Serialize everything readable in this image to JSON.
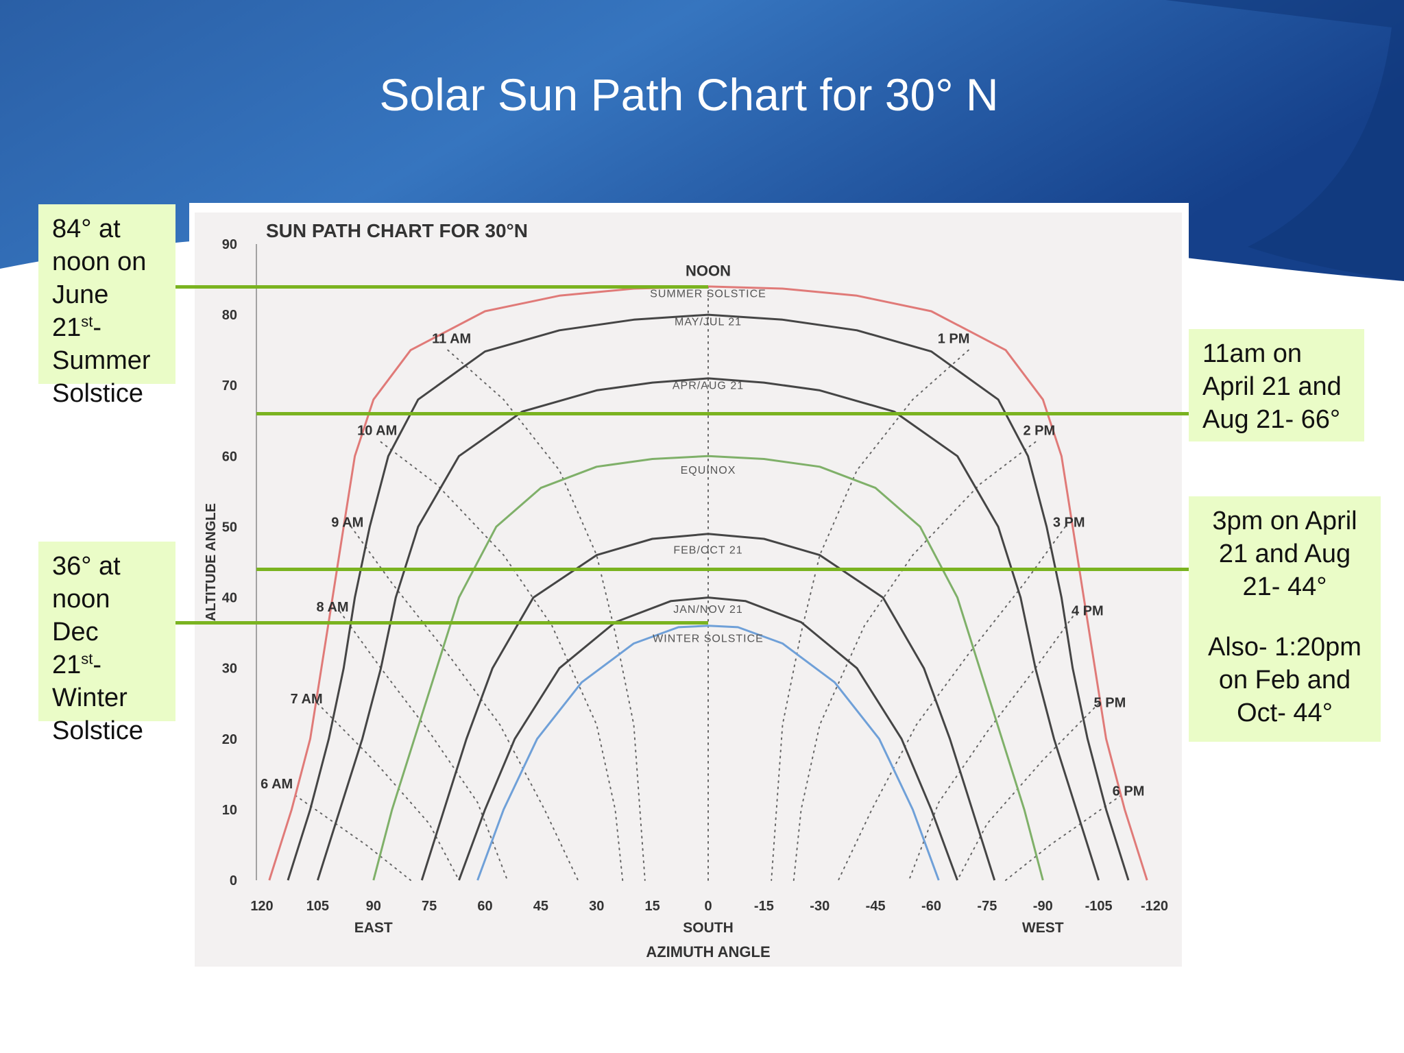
{
  "slide": {
    "title": "Solar Sun Path Chart for 30° N",
    "colors": {
      "header_dark": "#153d82",
      "header_light": "#2f6fb8",
      "highlight_line": "#7ab320",
      "note_bg": "#eafcc7"
    }
  },
  "notes": {
    "summer": {
      "l1": "84° at",
      "l2": "noon on",
      "l3": "June",
      "l4a": "21",
      "l4sup": "st",
      "l4b": "-",
      "l5": "Summer",
      "l6": "Solstice"
    },
    "winter": {
      "l1": "36° at",
      "l2": "noon",
      "l3": "Dec",
      "l4a": "21",
      "l4sup": "st",
      "l4b": "-",
      "l5": "Winter",
      "l6": "Solstice"
    },
    "eleven": {
      "l1": "11am on",
      "l2": "April 21 and",
      "l3": "Aug 21- 66°"
    },
    "three": {
      "l1": "3pm on April",
      "l2": "21 and Aug",
      "l3": "21- 44°",
      "l4": "Also- 1:20pm",
      "l5": "on Feb and",
      "l6": "Oct- 44°"
    }
  },
  "chart_data": {
    "type": "line",
    "title": "SUN PATH CHART FOR 30°N",
    "xlabel": "AZIMUTH ANGLE",
    "ylabel": "ALTITUDE ANGLE",
    "xlim": [
      120,
      -120
    ],
    "ylim": [
      0,
      90
    ],
    "x_ticks": [
      120,
      105,
      90,
      75,
      60,
      45,
      30,
      15,
      0,
      -15,
      -30,
      -45,
      -60,
      -75,
      -90,
      -105,
      -120
    ],
    "y_ticks": [
      0,
      10,
      20,
      30,
      40,
      50,
      60,
      70,
      80,
      90
    ],
    "x_direction_labels": [
      {
        "x": 90,
        "text": "EAST"
      },
      {
        "x": 0,
        "text": "SOUTH"
      },
      {
        "x": -90,
        "text": "WEST"
      }
    ],
    "series": [
      {
        "name": "SUMMER SOLSTICE",
        "color": "#e07a78",
        "label_y": 82.5,
        "points": [
          [
            118,
            0
          ],
          [
            112,
            10
          ],
          [
            107,
            20
          ],
          [
            104,
            30
          ],
          [
            101,
            40
          ],
          [
            98,
            50
          ],
          [
            95,
            60
          ],
          [
            90,
            68
          ],
          [
            80,
            75
          ],
          [
            60,
            80.5
          ],
          [
            40,
            82.7
          ],
          [
            20,
            83.7
          ],
          [
            0,
            84
          ],
          [
            -20,
            83.7
          ],
          [
            -40,
            82.7
          ],
          [
            -60,
            80.5
          ],
          [
            -80,
            75
          ],
          [
            -90,
            68
          ],
          [
            -95,
            60
          ],
          [
            -98,
            50
          ],
          [
            -101,
            40
          ],
          [
            -104,
            30
          ],
          [
            -107,
            20
          ],
          [
            -112,
            10
          ],
          [
            -118,
            0
          ]
        ]
      },
      {
        "name": "MAY/JUL 21",
        "color": "#454545",
        "label_y": 78.5,
        "points": [
          [
            113,
            0
          ],
          [
            107,
            10
          ],
          [
            102,
            20
          ],
          [
            98,
            30
          ],
          [
            95,
            40
          ],
          [
            91,
            50
          ],
          [
            86,
            60
          ],
          [
            78,
            68
          ],
          [
            60,
            74.8
          ],
          [
            40,
            77.8
          ],
          [
            20,
            79.3
          ],
          [
            0,
            80
          ],
          [
            -20,
            79.3
          ],
          [
            -40,
            77.8
          ],
          [
            -60,
            74.8
          ],
          [
            -78,
            68
          ],
          [
            -86,
            60
          ],
          [
            -91,
            50
          ],
          [
            -95,
            40
          ],
          [
            -98,
            30
          ],
          [
            -102,
            20
          ],
          [
            -107,
            10
          ],
          [
            -113,
            0
          ]
        ]
      },
      {
        "name": "APR/AUG 21",
        "color": "#454545",
        "label_y": 69.5,
        "points": [
          [
            105,
            0
          ],
          [
            99,
            10
          ],
          [
            93,
            20
          ],
          [
            88,
            30
          ],
          [
            84,
            40
          ],
          [
            78,
            50
          ],
          [
            67,
            60
          ],
          [
            50,
            66.3
          ],
          [
            30,
            69.3
          ],
          [
            15,
            70.4
          ],
          [
            0,
            71
          ],
          [
            -15,
            70.4
          ],
          [
            -30,
            69.3
          ],
          [
            -50,
            66.3
          ],
          [
            -67,
            60
          ],
          [
            -78,
            50
          ],
          [
            -84,
            40
          ],
          [
            -88,
            30
          ],
          [
            -93,
            20
          ],
          [
            -99,
            10
          ],
          [
            -105,
            0
          ]
        ]
      },
      {
        "name": "EQUINOX",
        "color": "#7fb069",
        "label_y": 57.5,
        "points": [
          [
            90,
            0
          ],
          [
            85,
            10
          ],
          [
            79,
            20
          ],
          [
            73,
            30
          ],
          [
            67,
            40
          ],
          [
            57,
            50
          ],
          [
            45,
            55.5
          ],
          [
            30,
            58.5
          ],
          [
            15,
            59.6
          ],
          [
            0,
            60
          ],
          [
            -15,
            59.6
          ],
          [
            -30,
            58.5
          ],
          [
            -45,
            55.5
          ],
          [
            -57,
            50
          ],
          [
            -67,
            40
          ],
          [
            -73,
            30
          ],
          [
            -79,
            20
          ],
          [
            -85,
            10
          ],
          [
            -90,
            0
          ]
        ]
      },
      {
        "name": "FEB/OCT 21",
        "color": "#454545",
        "label_y": 46.2,
        "points": [
          [
            77,
            0
          ],
          [
            71,
            10
          ],
          [
            65,
            20
          ],
          [
            58,
            30
          ],
          [
            47,
            40
          ],
          [
            30,
            46
          ],
          [
            15,
            48.3
          ],
          [
            0,
            49
          ],
          [
            -15,
            48.3
          ],
          [
            -30,
            46
          ],
          [
            -47,
            40
          ],
          [
            -58,
            30
          ],
          [
            -65,
            20
          ],
          [
            -71,
            10
          ],
          [
            -77,
            0
          ]
        ]
      },
      {
        "name": "JAN/NOV 21",
        "color": "#454545",
        "label_y": 37.8,
        "points": [
          [
            67,
            0
          ],
          [
            60,
            10
          ],
          [
            52,
            20
          ],
          [
            40,
            30
          ],
          [
            25,
            36.5
          ],
          [
            10,
            39.5
          ],
          [
            0,
            40
          ],
          [
            -10,
            39.5
          ],
          [
            -25,
            36.5
          ],
          [
            -40,
            30
          ],
          [
            -52,
            20
          ],
          [
            -60,
            10
          ],
          [
            -67,
            0
          ]
        ]
      },
      {
        "name": "WINTER SOLSTICE",
        "color": "#6fa0d8",
        "label_y": 33.7,
        "points": [
          [
            62,
            0
          ],
          [
            55,
            10
          ],
          [
            46,
            20
          ],
          [
            34,
            28
          ],
          [
            20,
            33.5
          ],
          [
            8,
            35.8
          ],
          [
            0,
            36
          ],
          [
            -8,
            35.8
          ],
          [
            -20,
            33.5
          ],
          [
            -34,
            28
          ],
          [
            -46,
            20
          ],
          [
            -55,
            10
          ],
          [
            -62,
            0
          ]
        ]
      }
    ],
    "hour_lines": [
      {
        "label": "6 AM",
        "points": [
          [
            111,
            12
          ],
          [
            92,
            5
          ],
          [
            80,
            0
          ]
        ]
      },
      {
        "label": "7 AM",
        "points": [
          [
            105,
            25
          ],
          [
            90,
            17
          ],
          [
            75,
            8
          ],
          [
            67,
            0
          ]
        ]
      },
      {
        "label": "8 AM",
        "points": [
          [
            99,
            38
          ],
          [
            88,
            30
          ],
          [
            75,
            21
          ],
          [
            62,
            11
          ],
          [
            54,
            0
          ]
        ]
      },
      {
        "label": "9 AM",
        "points": [
          [
            96,
            50
          ],
          [
            85,
            42
          ],
          [
            70,
            32
          ],
          [
            56,
            22
          ],
          [
            44,
            10
          ],
          [
            35,
            0
          ]
        ]
      },
      {
        "label": "10 AM",
        "points": [
          [
            88,
            62
          ],
          [
            73,
            56
          ],
          [
            55,
            46
          ],
          [
            42,
            36
          ],
          [
            30,
            22
          ],
          [
            25,
            10
          ],
          [
            23,
            0
          ]
        ]
      },
      {
        "label": "11 AM",
        "points": [
          [
            70,
            75
          ],
          [
            55,
            68
          ],
          [
            40,
            58
          ],
          [
            30,
            46
          ],
          [
            25,
            35
          ],
          [
            20,
            22
          ],
          [
            17,
            0
          ]
        ]
      },
      {
        "label": "NOON",
        "points": [
          [
            0,
            84
          ],
          [
            0,
            0
          ]
        ]
      },
      {
        "label": "1 PM",
        "points": [
          [
            -70,
            75
          ],
          [
            -55,
            68
          ],
          [
            -40,
            58
          ],
          [
            -30,
            46
          ],
          [
            -25,
            35
          ],
          [
            -20,
            22
          ],
          [
            -17,
            0
          ]
        ]
      },
      {
        "label": "2 PM",
        "points": [
          [
            -88,
            62
          ],
          [
            -73,
            56
          ],
          [
            -55,
            46
          ],
          [
            -42,
            36
          ],
          [
            -30,
            22
          ],
          [
            -25,
            10
          ],
          [
            -23,
            0
          ]
        ]
      },
      {
        "label": "3 PM",
        "points": [
          [
            -96,
            50
          ],
          [
            -85,
            42
          ],
          [
            -70,
            32
          ],
          [
            -56,
            22
          ],
          [
            -44,
            10
          ],
          [
            -35,
            0
          ]
        ]
      },
      {
        "label": "4 PM",
        "points": [
          [
            -99,
            38
          ],
          [
            -88,
            30
          ],
          [
            -75,
            21
          ],
          [
            -62,
            11
          ],
          [
            -54,
            0
          ]
        ]
      },
      {
        "label": "5 PM",
        "points": [
          [
            -105,
            25
          ],
          [
            -90,
            17
          ],
          [
            -75,
            8
          ],
          [
            -67,
            0
          ]
        ]
      },
      {
        "label": "6 PM",
        "points": [
          [
            -111,
            12
          ],
          [
            -92,
            5
          ],
          [
            -80,
            0
          ]
        ]
      }
    ],
    "hour_labels": [
      {
        "text": "6 AM",
        "x": 116,
        "y": 13
      },
      {
        "text": "7 AM",
        "x": 108,
        "y": 25
      },
      {
        "text": "8 AM",
        "x": 101,
        "y": 38
      },
      {
        "text": "9 AM",
        "x": 97,
        "y": 50
      },
      {
        "text": "10 AM",
        "x": 89,
        "y": 63
      },
      {
        "text": "11 AM",
        "x": 69,
        "y": 76
      },
      {
        "text": "NOON",
        "x": 0,
        "y": 85.5
      },
      {
        "text": "1 PM",
        "x": -66,
        "y": 76
      },
      {
        "text": "2 PM",
        "x": -89,
        "y": 63
      },
      {
        "text": "3 PM",
        "x": -97,
        "y": 50
      },
      {
        "text": "4 PM",
        "x": -102,
        "y": 37.5
      },
      {
        "text": "5 PM",
        "x": -108,
        "y": 24.5
      },
      {
        "text": "6 PM",
        "x": -113,
        "y": 12
      }
    ],
    "highlights": [
      {
        "x_from": 120,
        "x_to": 0,
        "y": 84
      },
      {
        "x_from": 120,
        "x_to": -120,
        "y": 66
      },
      {
        "x_from": 120,
        "x_to": -120,
        "y": 44
      },
      {
        "x_from": 120,
        "x_to": 0,
        "y": 36.5
      }
    ]
  }
}
